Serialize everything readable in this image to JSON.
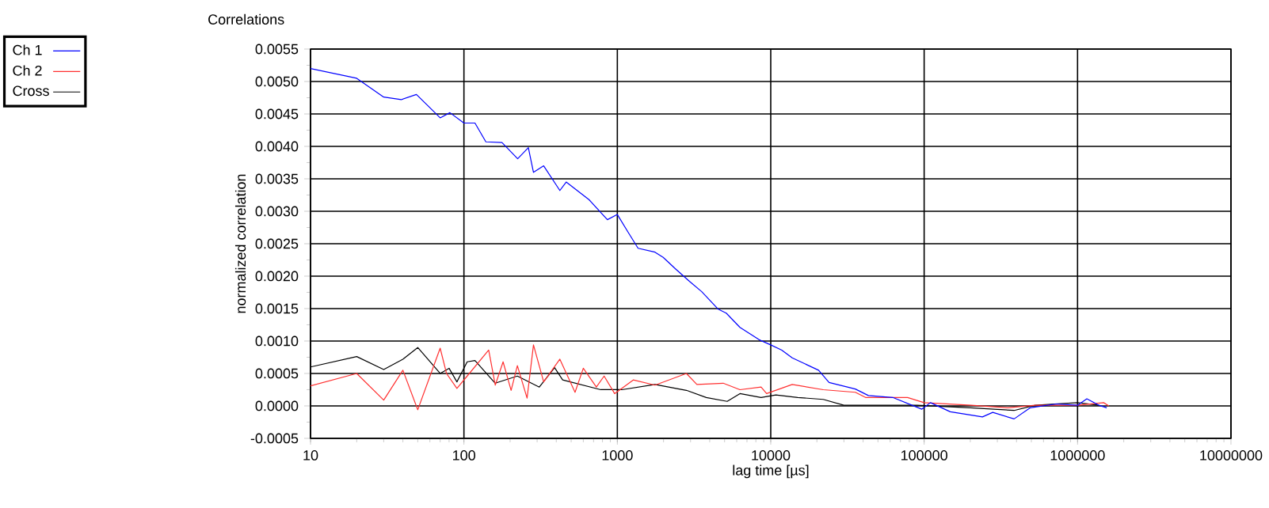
{
  "chart_data": {
    "type": "line",
    "title": "Correlations",
    "xlabel": "lag time [µs]",
    "ylabel": "normalized correlation",
    "log": "x",
    "grid": true,
    "legend": "top left",
    "xlim": [
      10,
      10000000
    ],
    "xticks": [
      10,
      100,
      1000,
      10000,
      100000,
      1000000,
      10000000
    ],
    "ylim": [
      -0.0005,
      0.0055
    ],
    "yticks": [
      -0.0005,
      {
        "value": 0,
        "label": "0.0000"
      },
      0.0005,
      {
        "value": 0.001,
        "label": "0.0010"
      },
      0.0015,
      {
        "value": 0.002,
        "label": "0.0020"
      },
      0.0025,
      {
        "value": 0.003,
        "label": "0.0030"
      },
      0.0035,
      {
        "value": 0.004,
        "label": "0.0040"
      },
      0.0045,
      {
        "value": 0.005,
        "label": "0.0050"
      },
      0.0055
    ],
    "series": [
      {
        "name": "Ch 1",
        "color": "#0000ff",
        "x": [
          10,
          20,
          30,
          39,
          49,
          70,
          81,
          100,
          118,
          139,
          177,
          224,
          263,
          284,
          331,
          422,
          464,
          653,
          861,
          1000,
          1180,
          1365,
          1760,
          1990,
          2400,
          2950,
          3550,
          4550,
          5130,
          6300,
          8400,
          10000,
          11800,
          13800,
          20500,
          24000,
          35600,
          43300,
          62400,
          96600,
          110000,
          148000,
          240000,
          280000,
          386000,
          490000,
          727000,
          1000000,
          1150000,
          1380000,
          1550000
        ],
        "values": [
          0.0052,
          0.00505,
          0.00476,
          0.00472,
          0.0048,
          0.00444,
          0.00452,
          0.00436,
          0.00436,
          0.00407,
          0.00406,
          0.00381,
          0.00398,
          0.0036,
          0.0037,
          0.00332,
          0.00345,
          0.00318,
          0.00287,
          0.00295,
          0.00267,
          0.00243,
          0.00237,
          0.00229,
          0.00211,
          0.00192,
          0.00176,
          0.00149,
          0.00143,
          0.00121,
          0.00102,
          0.00094,
          0.00086,
          0.00074,
          0.00055,
          0.00036,
          0.00026,
          0.00016,
          0.00013,
          -5e-05,
          5e-05,
          -9e-05,
          -0.00017,
          -0.0001,
          -0.0002,
          -3e-05,
          3e-05,
          1e-05,
          0.00011,
          1e-05,
          -3e-05
        ]
      },
      {
        "name": "Ch 2",
        "color": "#ff3030",
        "x": [
          10,
          20,
          30,
          40,
          50,
          70,
          77,
          90,
          105,
          145,
          160,
          180,
          203,
          223,
          258,
          284,
          331,
          422,
          530,
          600,
          730,
          820,
          960,
          1270,
          1760,
          2820,
          3300,
          4900,
          6300,
          8650,
          9400,
          13800,
          22000,
          35600,
          41500,
          78000,
          100000,
          203000,
          350000,
          530000,
          1000000,
          1480000,
          1600000
        ],
        "values": [
          0.00031,
          0.0005,
          9e-05,
          0.00055,
          -6e-05,
          0.00089,
          0.0005,
          0.00027,
          0.00046,
          0.00086,
          0.00032,
          0.00068,
          0.00024,
          0.00062,
          0.00012,
          0.00094,
          0.00037,
          0.00072,
          0.00021,
          0.00058,
          0.00029,
          0.00046,
          0.00019,
          0.0004,
          0.00032,
          0.0005,
          0.00033,
          0.00035,
          0.00025,
          0.00029,
          0.00019,
          0.00033,
          0.00025,
          0.00021,
          0.00013,
          0.00013,
          5e-05,
          1e-05,
          -3e-05,
          1e-05,
          1e-05,
          5e-05,
          0
        ]
      },
      {
        "name": "Cross",
        "color": "#000000",
        "x": [
          10,
          20,
          30,
          40,
          50,
          70,
          80,
          90,
          105,
          118,
          160,
          223,
          310,
          390,
          440,
          780,
          1070,
          1760,
          2820,
          3800,
          5200,
          6300,
          8650,
          10800,
          15000,
          22000,
          30000,
          90000,
          200000,
          386000,
          530000,
          1000000,
          1380000
        ],
        "values": [
          0.0006,
          0.00076,
          0.00056,
          0.00072,
          0.0009,
          0.0005,
          0.00058,
          0.00037,
          0.00068,
          0.0007,
          0.00035,
          0.00046,
          0.00029,
          0.00059,
          0.0004,
          0.00025,
          0.00025,
          0.00033,
          0.00024,
          0.00013,
          7e-05,
          0.00019,
          0.00013,
          0.00017,
          0.00013,
          0.0001,
          1e-05,
          1e-05,
          -3e-05,
          -7e-05,
          1e-05,
          5e-05,
          1e-05
        ]
      }
    ]
  }
}
